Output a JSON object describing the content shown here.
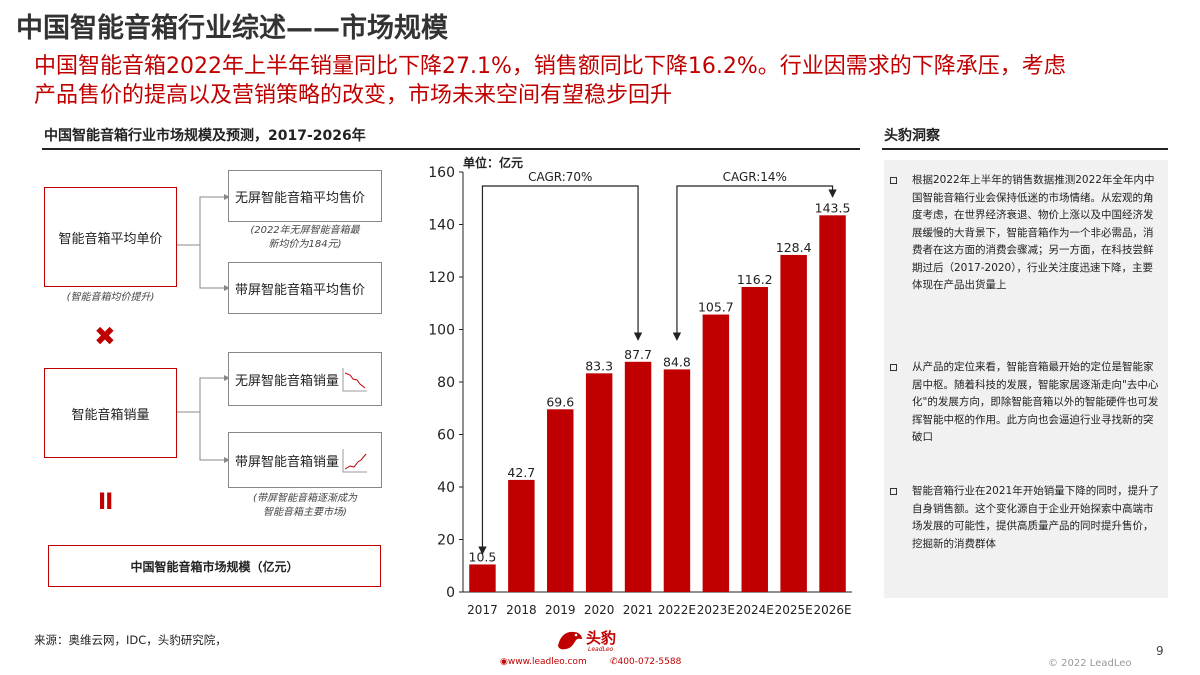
{
  "header": {
    "title": "中国智能音箱行业综述——市场规模",
    "subtitle_line1": "中国智能音箱2022年上半年销量同比下降27.1%，销售额同比下降16.2%。行业因需求的下降承压，考虑",
    "subtitle_line2": "产品售价的提高以及营销策略的改变，市场未来空间有望稳步回升"
  },
  "left": {
    "chart_title": "中国智能音箱行业市场规模及预测，2017-2026年"
  },
  "diagram": {
    "price_box": "智能音箱平均单价",
    "price_note": "(智能音箱均价提升)",
    "noscreen_price": "无屏智能音箱平均售价",
    "noscreen_price_note_1": "(2022年无屏智能音箱最",
    "noscreen_price_note_2": "新均价为184元)",
    "screen_price": "带屏智能音箱平均售价",
    "multiply_sign": "✖",
    "volume_box": "智能音箱销量",
    "noscreen_volume": "无屏智能音箱销量",
    "screen_volume": "带屏智能音箱销量",
    "screen_volume_note_1": "(带屏智能音箱逐渐成为",
    "screen_volume_note_2": "智能音箱主要市场)",
    "equals_sign": "II",
    "result_box": "中国智能音箱市场规模（亿元）",
    "colors": {
      "accent": "#c00000",
      "trend_down": "#c00000",
      "trend_up": "#c00000"
    }
  },
  "chart_data": {
    "type": "bar",
    "unit_label": "单位：亿元",
    "categories": [
      "2017",
      "2018",
      "2019",
      "2020",
      "2021",
      "2022E",
      "2023E",
      "2024E",
      "2025E",
      "2026E"
    ],
    "values": [
      10.5,
      42.7,
      69.6,
      83.3,
      87.7,
      84.8,
      105.7,
      116.2,
      128.4,
      143.5
    ],
    "value_labels": [
      "10.5",
      "42.7",
      "69.6",
      "83.3",
      "87.7",
      "84.8",
      "105.7",
      "116.2",
      "128.4",
      "143.5"
    ],
    "ylim": [
      0,
      160
    ],
    "yticks": [
      "0",
      "20",
      "40",
      "60",
      "80",
      "100",
      "120",
      "140",
      "160"
    ],
    "ytick_values": [
      0,
      20,
      40,
      60,
      80,
      100,
      120,
      140,
      160
    ],
    "bar_color": "#c00000",
    "grid": false,
    "annotations": [
      {
        "label": "CAGR:70%",
        "from": "2017",
        "to": "2021"
      },
      {
        "label": "CAGR:14%",
        "from": "2022E",
        "to": "2026E"
      }
    ]
  },
  "insights": {
    "title": "头豹洞察",
    "bullets": [
      "根据2022年上半年的销售数据推测2022年全年内中国智能音箱行业会保持低迷的市场情绪。从宏观的角度考虑，在世界经济衰退、物价上涨以及中国经济发展缓慢的大背景下，智能音箱作为一个非必需品，消费者在这方面的消费会骤减；另一方面，在科技尝鲜期过后（2017-2020），行业关注度迅速下降，主要体现在产品出货量上",
      "从产品的定位来看，智能音箱最开始的定位是智能家居中枢。随着科技的发展，智能家居逐渐走向\"去中心化\"的发展方向，即除智能音箱以外的智能硬件也可发挥智能中枢的作用。此方向也会逼迫行业寻找新的突破口",
      "智能音箱行业在2021年开始销量下降的同时，提升了自身销售额。这个变化源自于企业开始探索中高端市场发展的可能性，提供高质量产品的同时提升售价，挖掘新的消费群体"
    ]
  },
  "footer": {
    "source": "来源：奥维云网，IDC，头豹研究院，",
    "logo_text": "头豹",
    "logo_sub": "LeadLeo",
    "website": "www.leadleo.com",
    "phone": "400-072-5588",
    "page_number": "9",
    "copyright": "© 2022 LeadLeo"
  }
}
